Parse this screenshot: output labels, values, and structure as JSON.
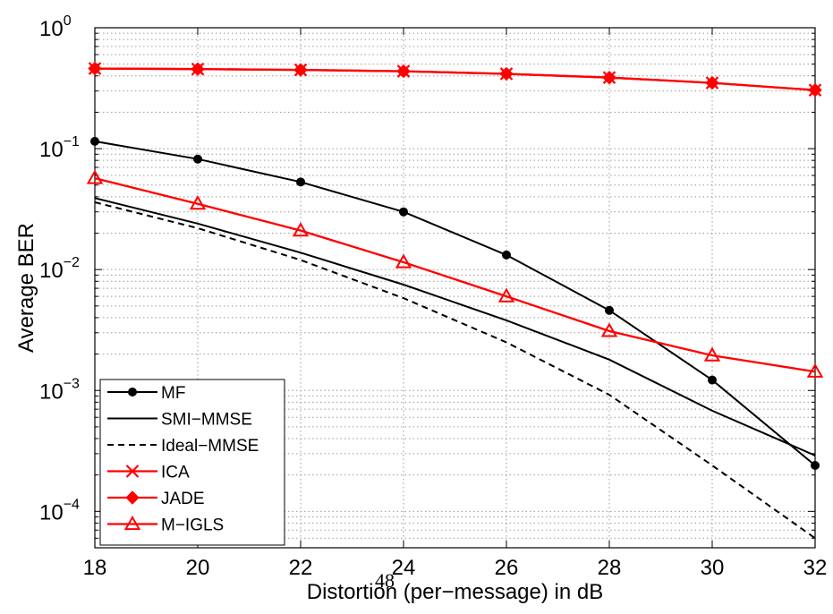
{
  "page_number": "48",
  "chart_data": {
    "type": "line",
    "title": "",
    "xlabel": "Distortion (per−message) in dB",
    "ylabel": "Average BER",
    "xlim": [
      18,
      32
    ],
    "ylim": [
      5e-05,
      1
    ],
    "yscale": "log",
    "grid": true,
    "legend_position": "bottom-left",
    "xticks": [
      "18",
      "20",
      "22",
      "24",
      "26",
      "28",
      "30",
      "32"
    ],
    "yticks": [
      {
        "base": "10",
        "exp": "0"
      },
      {
        "base": "10",
        "exp": "−1"
      },
      {
        "base": "10",
        "exp": "−2"
      },
      {
        "base": "10",
        "exp": "−3"
      },
      {
        "base": "10",
        "exp": "−4"
      }
    ],
    "x": [
      18,
      20,
      22,
      24,
      26,
      28,
      30,
      32
    ],
    "series": [
      {
        "name": "MF",
        "color": "#000000",
        "dash": "solid",
        "marker": "dot",
        "values": [
          0.115,
          0.082,
          0.053,
          0.03,
          0.0132,
          0.0046,
          0.00122,
          0.00024
        ]
      },
      {
        "name": "SMI−MMSE",
        "color": "#000000",
        "dash": "solid",
        "marker": "none",
        "values": [
          0.039,
          0.024,
          0.0138,
          0.0075,
          0.0038,
          0.0018,
          0.00068,
          0.00029
        ]
      },
      {
        "name": "Ideal−MMSE",
        "color": "#000000",
        "dash": "dashed",
        "marker": "none",
        "values": [
          0.036,
          0.022,
          0.012,
          0.0058,
          0.0025,
          0.00092,
          0.00024,
          6e-05
        ]
      },
      {
        "name": "ICA",
        "color": "#ff0000",
        "dash": "solid",
        "marker": "x",
        "values": [
          0.46,
          0.455,
          0.448,
          0.437,
          0.416,
          0.387,
          0.35,
          0.305
        ]
      },
      {
        "name": "JADE",
        "color": "#ff0000",
        "dash": "solid",
        "marker": "diamond",
        "values": [
          0.46,
          0.455,
          0.448,
          0.437,
          0.416,
          0.387,
          0.35,
          0.305
        ]
      },
      {
        "name": "M−IGLS",
        "color": "#ff0000",
        "dash": "solid",
        "marker": "triangle",
        "values": [
          0.057,
          0.035,
          0.021,
          0.0115,
          0.006,
          0.0031,
          0.00195,
          0.00143
        ]
      }
    ]
  }
}
